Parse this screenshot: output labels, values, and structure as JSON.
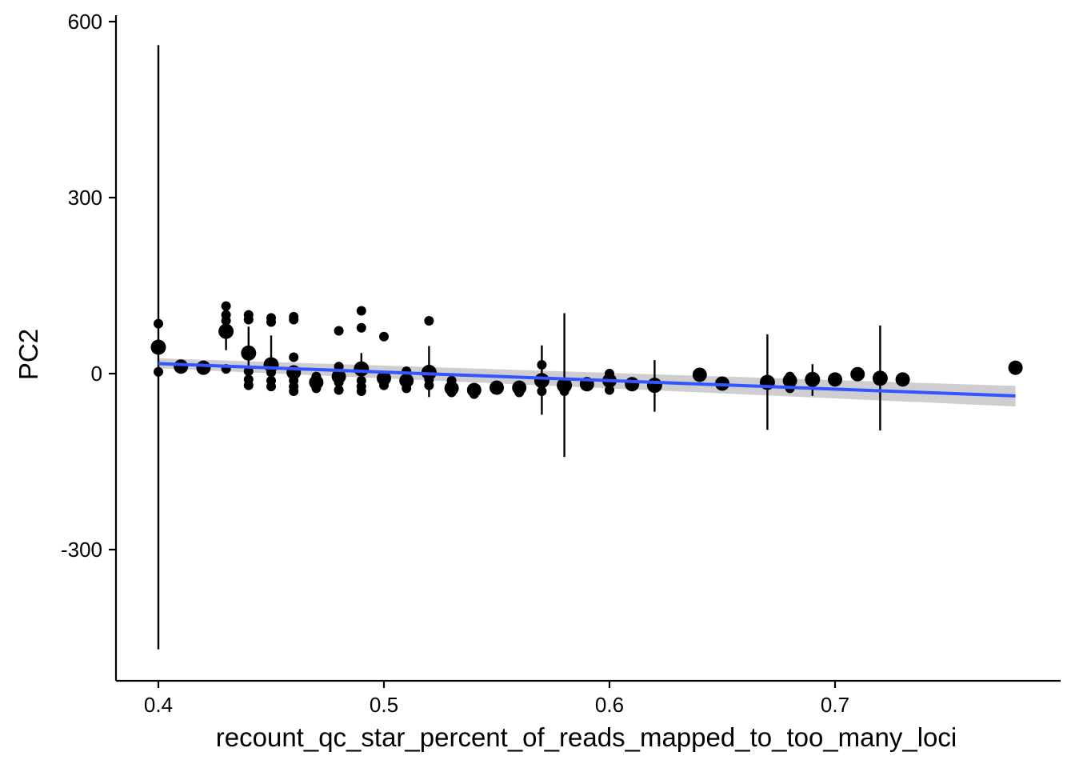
{
  "chart_data": {
    "type": "scatter",
    "xlabel": "recount_qc_star_percent_of_reads_mapped_to_too_many_loci",
    "ylabel": "PC2",
    "xlim": [
      0.381,
      0.9
    ],
    "ylim": [
      -520,
      610
    ],
    "x_ticks": [
      "0.4",
      "0.5",
      "0.6",
      "0.7"
    ],
    "y_ticks": [
      "-300",
      "0",
      "300",
      "600"
    ],
    "grid": false,
    "legend": "none",
    "colors": {
      "points": "#000000",
      "fit_line": "#3355FF",
      "confidence_band": "#BEBEBE"
    },
    "pointranges": [
      {
        "x": 0.4,
        "y": 45,
        "ymin": -470,
        "ymax": 560
      },
      {
        "x": 0.43,
        "y": 72,
        "ymin": 40,
        "ymax": 110
      },
      {
        "x": 0.44,
        "y": 35,
        "ymin": 10,
        "ymax": 80
      },
      {
        "x": 0.45,
        "y": 15,
        "ymin": -10,
        "ymax": 65
      },
      {
        "x": 0.49,
        "y": 8,
        "ymin": -10,
        "ymax": 35
      },
      {
        "x": 0.52,
        "y": 2,
        "ymin": -40,
        "ymax": 47
      },
      {
        "x": 0.57,
        "y": -12,
        "ymin": -70,
        "ymax": 48
      },
      {
        "x": 0.58,
        "y": -20,
        "ymin": -142,
        "ymax": 103
      },
      {
        "x": 0.62,
        "y": -20,
        "ymin": -65,
        "ymax": 23
      },
      {
        "x": 0.67,
        "y": -15,
        "ymin": -96,
        "ymax": 67
      },
      {
        "x": 0.69,
        "y": -10,
        "ymin": -38,
        "ymax": 16
      },
      {
        "x": 0.72,
        "y": -8,
        "ymin": -97,
        "ymax": 82
      }
    ],
    "points_large": [
      {
        "x": 0.41,
        "y": 12
      },
      {
        "x": 0.42,
        "y": 10
      },
      {
        "x": 0.46,
        "y": 2
      },
      {
        "x": 0.47,
        "y": -15
      },
      {
        "x": 0.48,
        "y": -5
      },
      {
        "x": 0.5,
        "y": -8
      },
      {
        "x": 0.51,
        "y": -12
      },
      {
        "x": 0.53,
        "y": -25
      },
      {
        "x": 0.54,
        "y": -28
      },
      {
        "x": 0.55,
        "y": -24
      },
      {
        "x": 0.56,
        "y": -24
      },
      {
        "x": 0.59,
        "y": -18
      },
      {
        "x": 0.6,
        "y": -12
      },
      {
        "x": 0.61,
        "y": -18
      },
      {
        "x": 0.64,
        "y": -2
      },
      {
        "x": 0.65,
        "y": -17
      },
      {
        "x": 0.68,
        "y": -12
      },
      {
        "x": 0.7,
        "y": -10
      },
      {
        "x": 0.71,
        "y": -1
      },
      {
        "x": 0.73,
        "y": -10
      },
      {
        "x": 0.78,
        "y": 10
      }
    ],
    "points_small": [
      {
        "x": 0.4,
        "y": 85
      },
      {
        "x": 0.4,
        "y": 3
      },
      {
        "x": 0.43,
        "y": 115
      },
      {
        "x": 0.43,
        "y": 100
      },
      {
        "x": 0.43,
        "y": 90
      },
      {
        "x": 0.43,
        "y": 8
      },
      {
        "x": 0.44,
        "y": 100
      },
      {
        "x": 0.44,
        "y": 92
      },
      {
        "x": 0.44,
        "y": 4
      },
      {
        "x": 0.44,
        "y": -10
      },
      {
        "x": 0.44,
        "y": -20
      },
      {
        "x": 0.45,
        "y": 95
      },
      {
        "x": 0.45,
        "y": 88
      },
      {
        "x": 0.45,
        "y": 2
      },
      {
        "x": 0.45,
        "y": -12
      },
      {
        "x": 0.45,
        "y": -22
      },
      {
        "x": 0.46,
        "y": 97
      },
      {
        "x": 0.46,
        "y": 92
      },
      {
        "x": 0.46,
        "y": 28
      },
      {
        "x": 0.46,
        "y": -12
      },
      {
        "x": 0.46,
        "y": -22
      },
      {
        "x": 0.46,
        "y": -30
      },
      {
        "x": 0.47,
        "y": -5
      },
      {
        "x": 0.47,
        "y": -25
      },
      {
        "x": 0.48,
        "y": 73
      },
      {
        "x": 0.48,
        "y": 12
      },
      {
        "x": 0.48,
        "y": -15
      },
      {
        "x": 0.48,
        "y": -28
      },
      {
        "x": 0.49,
        "y": 107
      },
      {
        "x": 0.49,
        "y": 78
      },
      {
        "x": 0.49,
        "y": -12
      },
      {
        "x": 0.49,
        "y": -22
      },
      {
        "x": 0.49,
        "y": -30
      },
      {
        "x": 0.5,
        "y": 63
      },
      {
        "x": 0.5,
        "y": -20
      },
      {
        "x": 0.51,
        "y": 4
      },
      {
        "x": 0.51,
        "y": -25
      },
      {
        "x": 0.52,
        "y": 90
      },
      {
        "x": 0.52,
        "y": -10
      },
      {
        "x": 0.52,
        "y": -20
      },
      {
        "x": 0.53,
        "y": -12
      },
      {
        "x": 0.53,
        "y": -32
      },
      {
        "x": 0.54,
        "y": -35
      },
      {
        "x": 0.56,
        "y": -32
      },
      {
        "x": 0.57,
        "y": 15
      },
      {
        "x": 0.57,
        "y": -30
      },
      {
        "x": 0.58,
        "y": -30
      },
      {
        "x": 0.6,
        "y": 0
      },
      {
        "x": 0.6,
        "y": -28
      },
      {
        "x": 0.68,
        "y": -5
      },
      {
        "x": 0.68,
        "y": -25
      }
    ],
    "fit_line": {
      "x": [
        0.4,
        0.78
      ],
      "y": [
        17,
        -38
      ],
      "band_lower": [
        9,
        -56
      ],
      "band_upper": [
        26,
        -21
      ]
    }
  }
}
